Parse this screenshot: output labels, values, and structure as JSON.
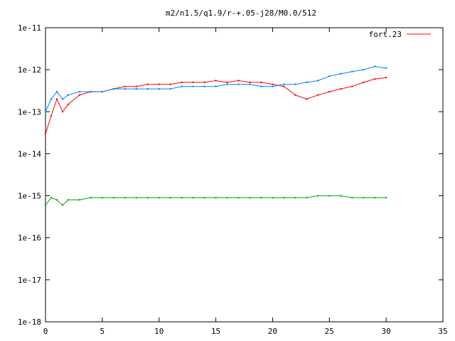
{
  "chart_data": {
    "type": "line",
    "title": "m2/n1.5/q1.9/r-+.05-j28/M0.0/512",
    "xlabel": "",
    "ylabel": "",
    "xlim": [
      0,
      35
    ],
    "ylim": [
      1e-18,
      1e-11
    ],
    "yscale": "log",
    "grid": false,
    "legend_position": "top-right",
    "x_ticks": [
      0,
      5,
      10,
      15,
      20,
      25,
      30,
      35
    ],
    "x_tick_labels": [
      "0",
      "5",
      "10",
      "15",
      "20",
      "25",
      "30",
      "35"
    ],
    "y_ticks": [
      1e-18,
      1e-17,
      1e-16,
      1e-15,
      1e-14,
      1e-13,
      1e-12,
      1e-11
    ],
    "y_tick_labels": [
      "1e-18",
      "1e-17",
      "1e-16",
      "1e-15",
      "1e-14",
      "1e-13",
      "1e-12",
      "1e-11"
    ],
    "series": [
      {
        "name": "fort.23",
        "color": "#ff0000",
        "x": [
          0,
          0.5,
          1,
          1.5,
          2,
          3,
          4,
          5,
          6,
          7,
          8,
          9,
          10,
          11,
          12,
          13,
          14,
          15,
          16,
          17,
          18,
          19,
          20,
          21,
          22,
          23,
          24,
          25,
          26,
          27,
          28,
          29,
          30
        ],
        "y": [
          3e-14,
          8e-14,
          2e-13,
          1e-13,
          1.5e-13,
          2.5e-13,
          3e-13,
          3e-13,
          3.5e-13,
          4e-13,
          4e-13,
          4.5e-13,
          4.5e-13,
          4.5e-13,
          5e-13,
          5e-13,
          5e-13,
          5.5e-13,
          5e-13,
          5.5e-13,
          5e-13,
          5e-13,
          4.5e-13,
          4e-13,
          2.5e-13,
          2e-13,
          2.5e-13,
          3e-13,
          3.5e-13,
          4e-13,
          5e-13,
          6e-13,
          6.5e-13
        ]
      },
      {
        "name": "",
        "color": "#0080ff",
        "x": [
          0,
          0.5,
          1,
          1.5,
          2,
          3,
          4,
          5,
          6,
          7,
          8,
          9,
          10,
          11,
          12,
          13,
          14,
          15,
          16,
          17,
          18,
          19,
          20,
          21,
          22,
          23,
          24,
          25,
          26,
          27,
          28,
          29,
          30
        ],
        "y": [
          1e-13,
          2e-13,
          3e-13,
          2e-13,
          2.5e-13,
          3e-13,
          3e-13,
          3e-13,
          3.5e-13,
          3.5e-13,
          3.5e-13,
          3.5e-13,
          3.5e-13,
          3.5e-13,
          4e-13,
          4e-13,
          4e-13,
          4e-13,
          4.5e-13,
          4.5e-13,
          4.5e-13,
          4e-13,
          4e-13,
          4.5e-13,
          4.5e-13,
          5e-13,
          5.5e-13,
          7e-13,
          8e-13,
          9e-13,
          1e-12,
          1.2e-12,
          1.1e-12
        ]
      },
      {
        "name": "",
        "color": "#00aa00",
        "x": [
          0,
          0.5,
          1,
          1.5,
          2,
          3,
          4,
          5,
          6,
          7,
          8,
          9,
          10,
          11,
          12,
          13,
          14,
          15,
          16,
          17,
          18,
          19,
          20,
          21,
          22,
          23,
          24,
          25,
          26,
          27,
          28,
          29,
          30
        ],
        "y": [
          6e-16,
          9e-16,
          8e-16,
          6e-16,
          8e-16,
          8e-16,
          9e-16,
          9e-16,
          9e-16,
          9e-16,
          9e-16,
          9e-16,
          9e-16,
          9e-16,
          9e-16,
          9e-16,
          9e-16,
          9e-16,
          9e-16,
          9e-16,
          9e-16,
          9e-16,
          9e-16,
          9e-16,
          9e-16,
          9e-16,
          1e-15,
          1e-15,
          1e-15,
          9e-16,
          9e-16,
          9e-16,
          9e-16
        ]
      }
    ]
  }
}
